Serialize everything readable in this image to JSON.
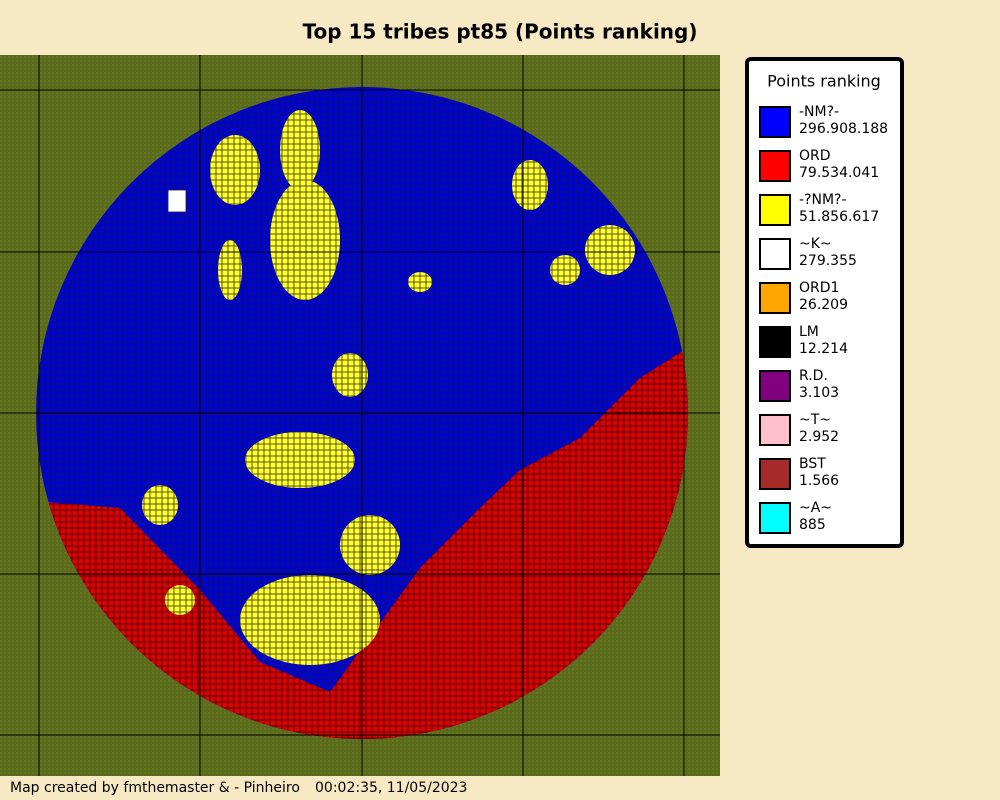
{
  "title": "Top 15 tribes pt85 (Points ranking)",
  "legend": {
    "title": "Points ranking",
    "items": [
      {
        "name": "-NM?-",
        "points": "296.908.188",
        "color": "#0000ff"
      },
      {
        "name": "ORD",
        "points": "79.534.041",
        "color": "#ff0000"
      },
      {
        "name": "-?NM?-",
        "points": "51.856.617",
        "color": "#ffff00"
      },
      {
        "name": "~K~",
        "points": "279.355",
        "color": "#ffffff"
      },
      {
        "name": "ORD1",
        "points": "26.209",
        "color": "#ffa500"
      },
      {
        "name": "LM",
        "points": "12.214",
        "color": "#000000"
      },
      {
        "name": "R.D.",
        "points": "3.103",
        "color": "#800080"
      },
      {
        "name": "~T~",
        "points": "2.952",
        "color": "#ffc0cb"
      },
      {
        "name": "BST",
        "points": "1.566",
        "color": "#a52a2a"
      },
      {
        "name": "~A~",
        "points": "885",
        "color": "#00ffff"
      }
    ]
  },
  "footer": {
    "credit": "Map created by fmthemaster & - Pinheiro",
    "timestamp": "00:02:35, 11/05/2023"
  }
}
